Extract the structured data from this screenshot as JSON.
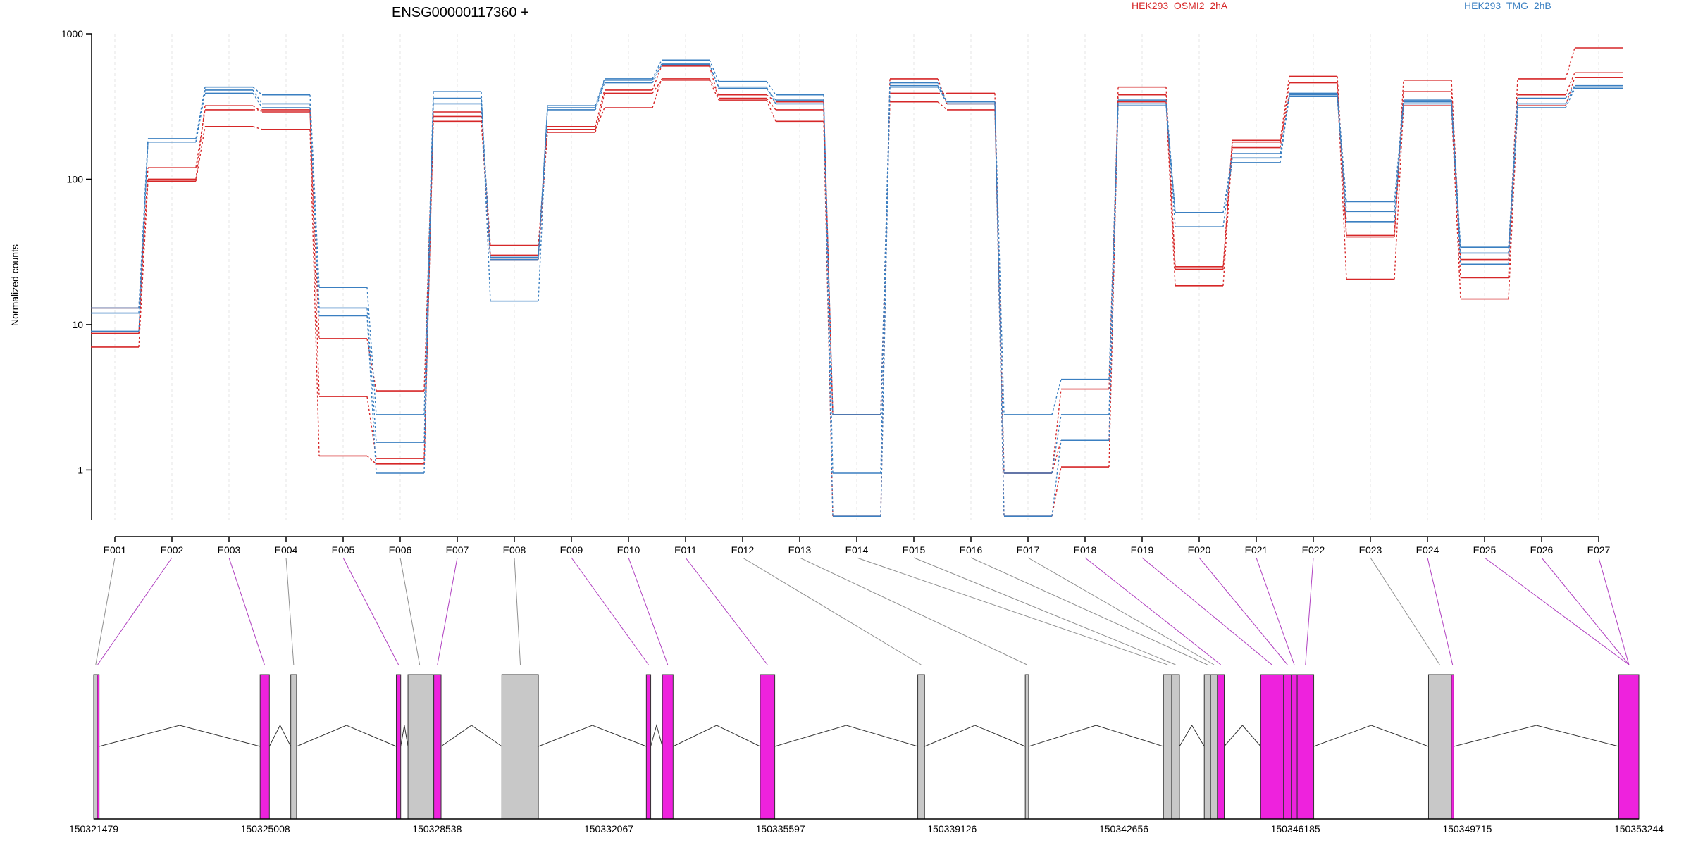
{
  "chart_data": {
    "type": "line",
    "title": "ENSG00000117360 +",
    "ylabel": "Normalized counts",
    "yscale": "log",
    "ylim": [
      0.45,
      1000
    ],
    "yticks": [
      1,
      10,
      100,
      1000
    ],
    "ytick_labels": [
      "1",
      "10",
      "100",
      "1000"
    ],
    "grid": "vertical dashed lines at exon positions",
    "legend": [
      {
        "name": "HEK293_OSMI2_2hA",
        "color": "#d62728"
      },
      {
        "name": "HEK293_TMG_2hB",
        "color": "#3a7fc1"
      }
    ],
    "categories": [
      "E001",
      "E002",
      "E003",
      "E004",
      "E005",
      "E006",
      "E007",
      "E008",
      "E009",
      "E010",
      "E011",
      "E012",
      "E013",
      "E014",
      "E015",
      "E016",
      "E017",
      "E018",
      "E019",
      "E020",
      "E021",
      "E022",
      "E023",
      "E024",
      "E025",
      "E026",
      "E027"
    ],
    "series": [
      {
        "name": "HEK293_OSMI2_2hA",
        "color": "#d62728",
        "values": [
          13,
          100,
          320,
          290,
          8,
          3.5,
          290,
          35,
          230,
          410,
          600,
          360,
          300,
          2.4,
          390,
          390,
          0.95,
          1.6,
          430,
          25,
          185,
          510,
          41,
          480,
          28,
          490,
          800
        ]
      },
      {
        "name": "HEK293_OSMI2_2hA",
        "color": "#d62728",
        "values": [
          8.7,
          120,
          300,
          300,
          3.2,
          1.2,
          250,
          30,
          210,
          390,
          480,
          350,
          250,
          0.48,
          490,
          330,
          0.48,
          1.05,
          380,
          24,
          180,
          380,
          40,
          400,
          21,
          380,
          540
        ]
      },
      {
        "name": "HEK293_OSMI2_2hA",
        "color": "#d62728",
        "values": [
          7,
          97,
          230,
          220,
          1.25,
          1.1,
          270,
          28,
          220,
          310,
          490,
          380,
          340,
          2.4,
          340,
          300,
          0.95,
          3.6,
          340,
          18.5,
          165,
          460,
          20.5,
          320,
          15,
          320,
          500
        ]
      },
      {
        "name": "HEK293_TMG_2hB",
        "color": "#3a7fc1",
        "values": [
          13,
          190,
          430,
          380,
          18,
          2.4,
          400,
          14.5,
          320,
          490,
          660,
          470,
          380,
          0.95,
          460,
          340,
          2.4,
          4.2,
          350,
          59,
          130,
          390,
          70,
          350,
          34,
          360,
          440
        ]
      },
      {
        "name": "HEK293_TMG_2hB",
        "color": "#3a7fc1",
        "values": [
          12,
          180,
          410,
          330,
          13,
          1.55,
          360,
          29,
          310,
          480,
          620,
          420,
          350,
          2.4,
          430,
          340,
          0.95,
          2.4,
          330,
          47,
          140,
          370,
          60,
          340,
          31,
          330,
          430
        ]
      },
      {
        "name": "HEK293_TMG_2hB",
        "color": "#3a7fc1",
        "values": [
          9,
          180,
          390,
          310,
          11.5,
          0.95,
          330,
          28,
          300,
          460,
          610,
          430,
          330,
          0.48,
          440,
          330,
          0.48,
          1.6,
          320,
          59,
          150,
          380,
          51,
          330,
          26,
          310,
          420
        ]
      }
    ],
    "genomic_axis": {
      "min": 150321479,
      "max": 150353244,
      "tick_values": [
        150321479,
        150325008,
        150328538,
        150332067,
        150335597,
        150339126,
        150342656,
        150346185,
        150349715,
        150353244
      ],
      "tick_labels": [
        "150321479",
        "150325008",
        "150328538",
        "150332067",
        "150335597",
        "150339126",
        "150342656",
        "150346185",
        "150349715",
        "150353244"
      ]
    },
    "exon_features": [
      {
        "start": 150321479,
        "end": 150321550,
        "color": "#c8c8c8"
      },
      {
        "start": 150321550,
        "end": 150321590,
        "color": "#ee22dd",
        "label": "E001/E002"
      },
      {
        "start": 150324900,
        "end": 150325090,
        "color": "#ee22dd"
      },
      {
        "start": 150325530,
        "end": 150325650,
        "color": "#c8c8c8"
      },
      {
        "start": 150327700,
        "end": 150327790,
        "color": "#ee22dd"
      },
      {
        "start": 150327940,
        "end": 150328470,
        "color": "#c8c8c8"
      },
      {
        "start": 150328470,
        "end": 150328620,
        "color": "#ee22dd"
      },
      {
        "start": 150329870,
        "end": 150330620,
        "color": "#c8c8c8"
      },
      {
        "start": 150332840,
        "end": 150332930,
        "color": "#ee22dd"
      },
      {
        "start": 150333170,
        "end": 150333390,
        "color": "#ee22dd"
      },
      {
        "start": 150335180,
        "end": 150335480,
        "color": "#ee22dd"
      },
      {
        "start": 150338420,
        "end": 150338560,
        "color": "#c8c8c8"
      },
      {
        "start": 150340630,
        "end": 150340700,
        "color": "#c8c8c8"
      },
      {
        "start": 150343470,
        "end": 150343640,
        "color": "#c8c8c8"
      },
      {
        "start": 150343640,
        "end": 150343800,
        "color": "#c8c8c8"
      },
      {
        "start": 150344310,
        "end": 150344440,
        "color": "#c8c8c8"
      },
      {
        "start": 150344440,
        "end": 150344580,
        "color": "#c8c8c8"
      },
      {
        "start": 150344580,
        "end": 150344720,
        "color": "#ee22dd"
      },
      {
        "start": 150345470,
        "end": 150345940,
        "color": "#ee22dd"
      },
      {
        "start": 150345940,
        "end": 150346100,
        "color": "#ee22dd"
      },
      {
        "start": 150346100,
        "end": 150346220,
        "color": "#ee22dd"
      },
      {
        "start": 150346220,
        "end": 150346560,
        "color": "#ee22dd"
      },
      {
        "start": 150348920,
        "end": 150349390,
        "color": "#c8c8c8"
      },
      {
        "start": 150349390,
        "end": 150349440,
        "color": "#ee22dd"
      },
      {
        "start": 150352830,
        "end": 150353244,
        "color": "#ee22dd"
      }
    ],
    "connector_targets": [
      150321520,
      150321560,
      150324990,
      150325590,
      150327745,
      150328180,
      150328545,
      150330250,
      150332885,
      150333280,
      150335330,
      150338490,
      150340665,
      150343555,
      150343720,
      150344375,
      150344510,
      150344650,
      150345700,
      150346020,
      150346160,
      150346390,
      150349150,
      150349415,
      150353040
    ]
  }
}
